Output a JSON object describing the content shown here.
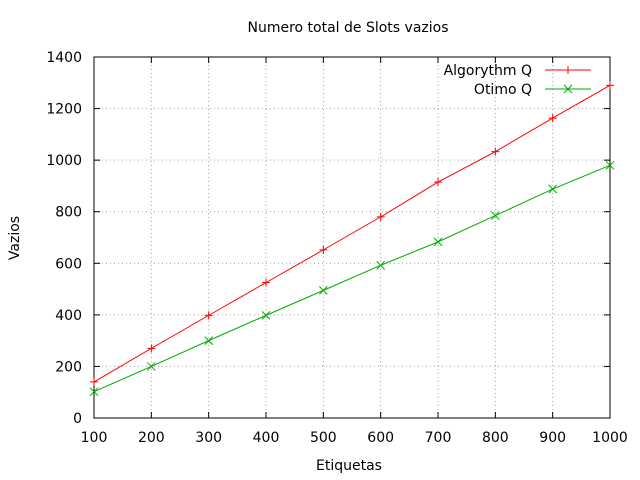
{
  "chart_data": {
    "type": "line",
    "title": "Numero total de Slots vazios",
    "xlabel": "Etiquetas",
    "ylabel": "Vazios",
    "xlim": [
      100,
      1000
    ],
    "ylim": [
      0,
      1400
    ],
    "xticks": [
      100,
      200,
      300,
      400,
      500,
      600,
      700,
      800,
      900,
      1000
    ],
    "yticks": [
      0,
      200,
      400,
      600,
      800,
      1000,
      1200,
      1400
    ],
    "grid": true,
    "legend_position": "top-right",
    "x": [
      100,
      200,
      300,
      400,
      500,
      600,
      700,
      800,
      900,
      1000
    ],
    "series": [
      {
        "name": "Algorythm Q",
        "color": "#ff0000",
        "marker": "plus",
        "values": [
          140,
          270,
          398,
          525,
          652,
          780,
          915,
          1033,
          1163,
          1290
        ]
      },
      {
        "name": "Otimo Q",
        "color": "#00aa00",
        "marker": "cross",
        "values": [
          102,
          200,
          300,
          398,
          495,
          592,
          683,
          785,
          888,
          980
        ]
      }
    ]
  }
}
